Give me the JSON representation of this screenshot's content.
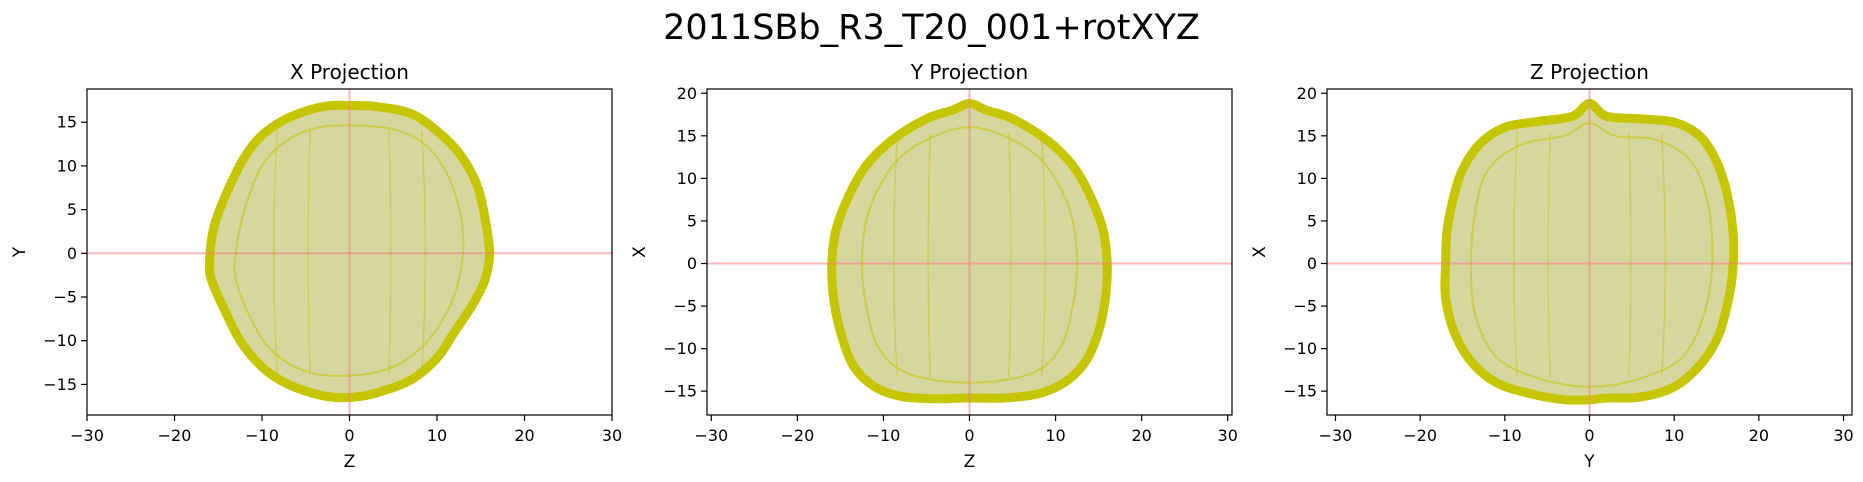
{
  "suptitle": "2011SBb_R3_T20_001+rotXYZ",
  "colors": {
    "fill": "#d4d49a",
    "edge": "#c6c600",
    "crosshair": "#f08080"
  },
  "chart_data": [
    {
      "type": "area",
      "title": "X Projection",
      "xlabel": "Z",
      "ylabel": "Y",
      "xlim": [
        -30,
        30
      ],
      "ylim": [
        -18.5,
        18.8
      ],
      "xticks": [
        -30,
        -20,
        -10,
        0,
        10,
        20,
        30
      ],
      "yticks": [
        -15,
        -10,
        -5,
        0,
        5,
        10,
        15
      ],
      "crosshair": [
        0,
        0
      ],
      "outline": [
        [
          -16,
          -1
        ],
        [
          -15.5,
          3
        ],
        [
          -14,
          7
        ],
        [
          -12,
          11
        ],
        [
          -10,
          13.5
        ],
        [
          -7,
          15.5
        ],
        [
          -3,
          16.8
        ],
        [
          0,
          16.9
        ],
        [
          3,
          16.8
        ],
        [
          7,
          16
        ],
        [
          10,
          14
        ],
        [
          12.5,
          11.5
        ],
        [
          14.5,
          8
        ],
        [
          15.5,
          4
        ],
        [
          16,
          0
        ],
        [
          15.5,
          -3
        ],
        [
          14,
          -6
        ],
        [
          12,
          -9
        ],
        [
          10,
          -12
        ],
        [
          7,
          -14.5
        ],
        [
          3,
          -16
        ],
        [
          0,
          -16.5
        ],
        [
          -3,
          -16.3
        ],
        [
          -7,
          -15
        ],
        [
          -10,
          -13
        ],
        [
          -12.5,
          -10
        ],
        [
          -14.5,
          -6
        ],
        [
          -15.8,
          -3
        ]
      ],
      "inner": [
        [
          -13,
          0
        ],
        [
          -12,
          5
        ],
        [
          -10,
          10
        ],
        [
          -7,
          13
        ],
        [
          -3,
          14.5
        ],
        [
          3,
          14.5
        ],
        [
          7,
          13.5
        ],
        [
          10,
          11
        ],
        [
          12,
          7
        ],
        [
          13,
          2
        ],
        [
          12.5,
          -3
        ],
        [
          11,
          -7
        ],
        [
          8.5,
          -10.5
        ],
        [
          5,
          -13
        ],
        [
          0,
          -14
        ],
        [
          -5,
          -13.5
        ],
        [
          -9,
          -11
        ],
        [
          -11.5,
          -7
        ],
        [
          -13,
          -3
        ]
      ]
    },
    {
      "type": "area",
      "title": "Y Projection",
      "xlabel": "Z",
      "ylabel": "X",
      "xlim": [
        -30.5,
        30.5
      ],
      "ylim": [
        -17.8,
        20.5
      ],
      "xticks": [
        -30,
        -20,
        -10,
        0,
        10,
        20,
        30
      ],
      "yticks": [
        -15,
        -10,
        -5,
        0,
        5,
        10,
        15,
        20
      ],
      "crosshair": [
        0,
        0
      ],
      "outline": [
        [
          -16,
          0
        ],
        [
          -15.5,
          4
        ],
        [
          -14,
          8
        ],
        [
          -12,
          11.5
        ],
        [
          -9,
          14.5
        ],
        [
          -5,
          17
        ],
        [
          -2,
          18
        ],
        [
          0,
          18.8
        ],
        [
          2,
          18
        ],
        [
          5,
          17
        ],
        [
          9,
          14.5
        ],
        [
          12,
          11.5
        ],
        [
          14,
          8
        ],
        [
          15.5,
          4
        ],
        [
          16,
          0
        ],
        [
          15.8,
          -4
        ],
        [
          15,
          -8
        ],
        [
          13.5,
          -11.5
        ],
        [
          11,
          -14
        ],
        [
          8,
          -15.3
        ],
        [
          4,
          -15.8
        ],
        [
          0,
          -15.8
        ],
        [
          -4,
          -15.9
        ],
        [
          -8,
          -15.6
        ],
        [
          -11,
          -14.5
        ],
        [
          -13.5,
          -12
        ],
        [
          -15,
          -8
        ],
        [
          -15.8,
          -4
        ]
      ],
      "inner": [
        [
          -12.5,
          0
        ],
        [
          -12,
          5
        ],
        [
          -10.5,
          9
        ],
        [
          -8,
          12.5
        ],
        [
          -4,
          15
        ],
        [
          0,
          16
        ],
        [
          4,
          15
        ],
        [
          8,
          12.5
        ],
        [
          10.5,
          9
        ],
        [
          12,
          5
        ],
        [
          12.5,
          0
        ],
        [
          12,
          -5
        ],
        [
          10.5,
          -10
        ],
        [
          7,
          -13
        ],
        [
          0,
          -14
        ],
        [
          -7,
          -13
        ],
        [
          -10.5,
          -10
        ],
        [
          -12,
          -5
        ]
      ]
    },
    {
      "type": "area",
      "title": "Z Projection",
      "xlabel": "Y",
      "ylabel": "X",
      "xlim": [
        -31,
        31
      ],
      "ylim": [
        -17.8,
        20.5
      ],
      "xticks": [
        -30,
        -20,
        -10,
        0,
        10,
        20,
        30
      ],
      "yticks": [
        -15,
        -10,
        -5,
        0,
        5,
        10,
        15,
        20
      ],
      "crosshair": [
        0,
        0
      ],
      "outline": [
        [
          -17,
          0
        ],
        [
          -16.8,
          4
        ],
        [
          -16,
          8
        ],
        [
          -15,
          11
        ],
        [
          -13,
          14
        ],
        [
          -10,
          16
        ],
        [
          -6,
          16.7
        ],
        [
          -2,
          17.3
        ],
        [
          0,
          18.8
        ],
        [
          2,
          17.3
        ],
        [
          6,
          17
        ],
        [
          10,
          16.6
        ],
        [
          13,
          15
        ],
        [
          15,
          12
        ],
        [
          16.3,
          8
        ],
        [
          17,
          3
        ],
        [
          16.8,
          -2
        ],
        [
          16,
          -6
        ],
        [
          15,
          -9
        ],
        [
          13,
          -12
        ],
        [
          10,
          -14.5
        ],
        [
          6,
          -15.7
        ],
        [
          2,
          -15.8
        ],
        [
          0,
          -16
        ],
        [
          -3,
          -16
        ],
        [
          -7,
          -15.3
        ],
        [
          -11,
          -14
        ],
        [
          -14,
          -11.5
        ],
        [
          -16,
          -8
        ],
        [
          -17,
          -4
        ]
      ],
      "inner": [
        [
          -14,
          0
        ],
        [
          -13.5,
          6
        ],
        [
          -12,
          11
        ],
        [
          -8,
          14
        ],
        [
          -3,
          15
        ],
        [
          0,
          16.5
        ],
        [
          3,
          15
        ],
        [
          8,
          14.5
        ],
        [
          12,
          12
        ],
        [
          14,
          7
        ],
        [
          14.5,
          0
        ],
        [
          13.5,
          -6
        ],
        [
          11,
          -11
        ],
        [
          6,
          -13.5
        ],
        [
          0,
          -14.5
        ],
        [
          -6,
          -13.5
        ],
        [
          -11,
          -11
        ],
        [
          -13.5,
          -6
        ]
      ]
    }
  ]
}
